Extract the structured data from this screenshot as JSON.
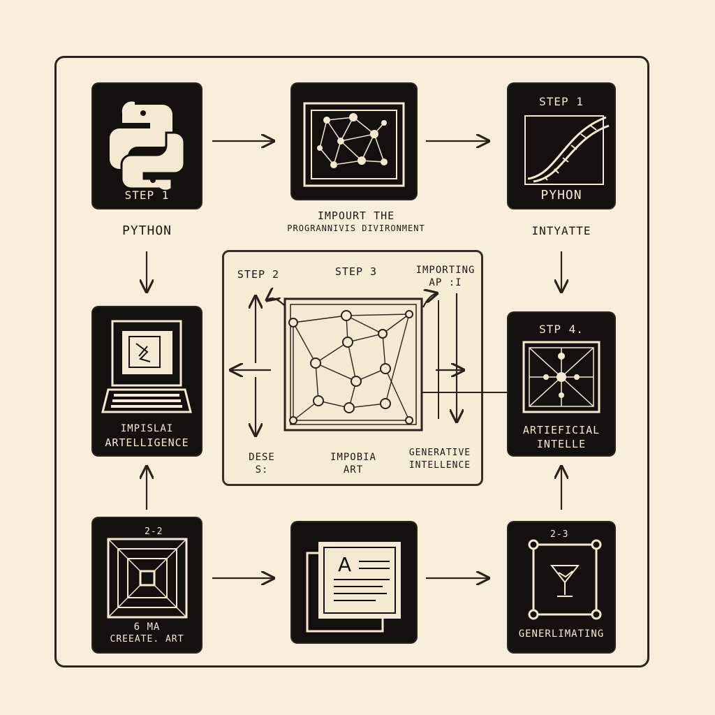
{
  "nodes": {
    "top_left": {
      "inner": "STEP 1",
      "caption": "PYTHON"
    },
    "top_mid": {
      "caption_line1": "IMPOURT THE",
      "caption_line2": "PROGRANNIVIS DIVIRONMENT"
    },
    "top_right": {
      "inner_top": "STEP 1",
      "inner_bottom": "PYHON",
      "caption": "INTYATTE"
    },
    "mid_left": {
      "inner_line1": "IMPISLAI",
      "inner_line2": "ARTELLIGENCE"
    },
    "mid_right": {
      "inner_top": "STP 4.",
      "inner_line1": "ARTIEFICIAL",
      "inner_line2": "INTELLE"
    },
    "bottom_left": {
      "inner_top": "2-2",
      "inner_line1": "6 MA",
      "inner_line2": "CREEATE. ART"
    },
    "bottom_right": {
      "inner_top": "2-3",
      "inner_bottom": "GENERLIMATING"
    }
  },
  "center": {
    "step2": "STEP 2",
    "step3": "STEP 3",
    "importing_line1": "IMPORTING",
    "importing_line2": "AP :I",
    "bl_line1": "DESE",
    "bl_line2": "S:",
    "bm_line1": "IMPOBIA",
    "bm_line2": "ART",
    "br_line1": "GENERATIVE",
    "br_line2": "INTELLENCE"
  },
  "icons": {
    "bottom_mid_letter": "A"
  },
  "colors": {
    "background": "#f8eedb",
    "tile": "#14100d",
    "ink": "#1b1612",
    "tile_ink": "#f4ead4"
  }
}
